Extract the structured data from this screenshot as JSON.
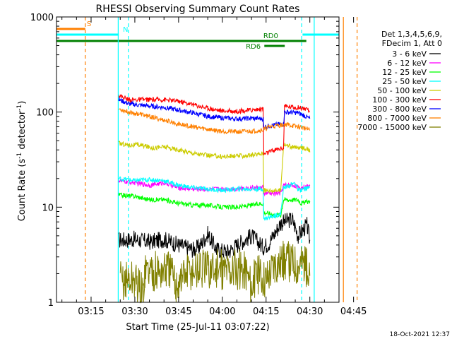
{
  "chart_data": {
    "type": "line",
    "title": "RHESSI Observing Summary Count Rates",
    "xlabel": "Start Time (25-Jul-11 03:07:22)",
    "ylabel_main": "Count Rate (s",
    "ylabel_sup1": "-1",
    "ylabel_mid": " detector",
    "ylabel_sup2": "-1",
    "ylabel_end": ")",
    "y_scale": "log",
    "ylim": [
      1,
      1000
    ],
    "xlim_minutes": [
      3.14,
      100
    ],
    "y_ticks": [
      {
        "value": 1,
        "label": "1"
      },
      {
        "value": 10,
        "label": "10"
      },
      {
        "value": 100,
        "label": "100"
      },
      {
        "value": 1000,
        "label": "1000"
      }
    ],
    "x_ticks": [
      {
        "minute": 15,
        "label": "03:15"
      },
      {
        "minute": 30,
        "label": "03:30"
      },
      {
        "minute": 45,
        "label": "03:45"
      },
      {
        "minute": 60,
        "label": "04:00"
      },
      {
        "minute": 75,
        "label": "04:15"
      },
      {
        "minute": 90,
        "label": "04:30"
      },
      {
        "minute": 105,
        "label": "04:45"
      }
    ],
    "legend_header": [
      "Det 1,3,4,5,6,9,",
      "FDecim 1, Att 0"
    ],
    "legend_placement": "right",
    "series": [
      {
        "name": "3 - 6 keV",
        "color": "#000000",
        "points": [
          [
            24.5,
            4.5
          ],
          [
            30,
            4.6
          ],
          [
            35,
            4.3
          ],
          [
            40,
            4.6
          ],
          [
            45,
            4.0
          ],
          [
            50,
            3.6
          ],
          [
            52,
            3.8
          ],
          [
            55,
            5.2
          ],
          [
            58,
            3.6
          ],
          [
            62,
            3.4
          ],
          [
            66,
            4.2
          ],
          [
            70,
            5.0
          ],
          [
            74,
            3.8
          ],
          [
            76,
            4.2
          ],
          [
            80,
            6.8
          ],
          [
            84,
            7.5
          ],
          [
            86,
            5.0
          ],
          [
            89,
            6.5
          ],
          [
            90,
            4.5
          ]
        ]
      },
      {
        "name": "6 - 12 keV",
        "color": "#ff00ff",
        "points": [
          [
            24.5,
            19
          ],
          [
            30,
            18
          ],
          [
            35,
            17
          ],
          [
            40,
            18
          ],
          [
            45,
            16
          ],
          [
            50,
            15.5
          ],
          [
            55,
            15.5
          ],
          [
            60,
            15.5
          ],
          [
            65,
            15.5
          ],
          [
            70,
            16
          ],
          [
            74,
            16
          ],
          [
            74.2,
            14
          ],
          [
            80,
            14
          ],
          [
            81,
            17
          ],
          [
            85,
            17
          ],
          [
            86,
            16
          ],
          [
            90,
            16.5
          ]
        ]
      },
      {
        "name": "12 - 25 keV",
        "color": "#00ff00",
        "points": [
          [
            24.5,
            13.5
          ],
          [
            30,
            13
          ],
          [
            35,
            12
          ],
          [
            40,
            12
          ],
          [
            45,
            11
          ],
          [
            50,
            10.5
          ],
          [
            55,
            10.5
          ],
          [
            60,
            10
          ],
          [
            65,
            10
          ],
          [
            70,
            10.5
          ],
          [
            74,
            11
          ],
          [
            74.2,
            8.8
          ],
          [
            80,
            8.2
          ],
          [
            81,
            12
          ],
          [
            86,
            12
          ],
          [
            87,
            11
          ],
          [
            90,
            11.5
          ]
        ]
      },
      {
        "name": "25 - 50 keV",
        "color": "#00ffff",
        "points": [
          [
            24.5,
            20
          ],
          [
            30,
            19
          ],
          [
            35,
            19.5
          ],
          [
            40,
            19
          ],
          [
            45,
            17
          ],
          [
            50,
            16
          ],
          [
            55,
            15.5
          ],
          [
            60,
            15
          ],
          [
            65,
            15.5
          ],
          [
            70,
            15.5
          ],
          [
            74,
            15.5
          ],
          [
            74.2,
            7.5
          ],
          [
            80,
            8.5
          ],
          [
            81,
            16
          ],
          [
            85,
            18
          ],
          [
            86,
            15
          ],
          [
            90,
            16
          ]
        ]
      },
      {
        "name": "50 - 100 keV",
        "color": "#cccc00",
        "points": [
          [
            24.5,
            47
          ],
          [
            28,
            45
          ],
          [
            32,
            45
          ],
          [
            36,
            42
          ],
          [
            40,
            43
          ],
          [
            45,
            40
          ],
          [
            50,
            37
          ],
          [
            55,
            35
          ],
          [
            60,
            34
          ],
          [
            65,
            34.5
          ],
          [
            70,
            35
          ],
          [
            74,
            37
          ],
          [
            74.2,
            15
          ],
          [
            80,
            15
          ],
          [
            81,
            46
          ],
          [
            85,
            42
          ],
          [
            88,
            42
          ],
          [
            90,
            40
          ]
        ]
      },
      {
        "name": "100 - 300 keV",
        "color": "#ff0000",
        "points": [
          [
            24.5,
            150
          ],
          [
            28,
            135
          ],
          [
            35,
            135
          ],
          [
            40,
            135
          ],
          [
            45,
            130
          ],
          [
            50,
            120
          ],
          [
            55,
            110
          ],
          [
            60,
            103
          ],
          [
            65,
            102
          ],
          [
            70,
            105
          ],
          [
            74,
            108
          ],
          [
            74.2,
            36
          ],
          [
            78,
            40
          ],
          [
            81,
            42
          ],
          [
            81.3,
            115
          ],
          [
            86,
            112
          ],
          [
            88,
            110
          ],
          [
            90,
            100
          ]
        ]
      },
      {
        "name": "300 - 800 keV",
        "color": "#0000ff",
        "points": [
          [
            24.5,
            135
          ],
          [
            28,
            122
          ],
          [
            32,
            118
          ],
          [
            36,
            115
          ],
          [
            40,
            112
          ],
          [
            45,
            105
          ],
          [
            50,
            98
          ],
          [
            55,
            90
          ],
          [
            60,
            87
          ],
          [
            65,
            85
          ],
          [
            70,
            86
          ],
          [
            74,
            85
          ],
          [
            74.2,
            70
          ],
          [
            80,
            75
          ],
          [
            81,
            75
          ],
          [
            81.3,
            100
          ],
          [
            86,
            98
          ],
          [
            88,
            92
          ],
          [
            90,
            85
          ]
        ]
      },
      {
        "name": "800 - 7000 keV",
        "color": "#ff8000",
        "points": [
          [
            24.5,
            108
          ],
          [
            28,
            100
          ],
          [
            32,
            95
          ],
          [
            36,
            88
          ],
          [
            40,
            82
          ],
          [
            45,
            75
          ],
          [
            50,
            70
          ],
          [
            55,
            66
          ],
          [
            60,
            63
          ],
          [
            65,
            62
          ],
          [
            70,
            63
          ],
          [
            74,
            65
          ],
          [
            76,
            70
          ],
          [
            80,
            73
          ],
          [
            82,
            74
          ],
          [
            84,
            72
          ],
          [
            86,
            70
          ],
          [
            88,
            68
          ],
          [
            90,
            65
          ]
        ]
      },
      {
        "name": "7000 - 15000 keV",
        "color": "#808000",
        "points": [
          [
            25,
            1.7
          ],
          [
            30,
            1.7
          ],
          [
            33,
            1.2
          ],
          [
            33.3,
            2.2
          ],
          [
            38,
            2.1
          ],
          [
            42,
            2.2
          ],
          [
            44,
            1.5
          ],
          [
            46,
            1.8
          ],
          [
            48,
            2.1
          ],
          [
            52,
            2.2
          ],
          [
            56,
            2.2
          ],
          [
            60,
            2.2
          ],
          [
            64,
            2.2
          ],
          [
            68,
            2.2
          ],
          [
            70,
            1.5
          ],
          [
            72,
            2.0
          ],
          [
            75,
            1.8
          ],
          [
            78,
            2.6
          ],
          [
            81,
            2.7
          ],
          [
            84,
            2.7
          ],
          [
            86,
            2.5
          ],
          [
            88,
            2.7
          ],
          [
            90,
            1.8
          ]
        ]
      }
    ],
    "bars": [
      {
        "label": "S",
        "color": "#ff8000",
        "level": "top",
        "x_start": 3.14,
        "x_end": 13,
        "x_start2": 101,
        "x_end2": 104,
        "label_minute": 14.3
      },
      {
        "label": "N",
        "color": "#00ffff",
        "level": "upper",
        "x_start": 3.14,
        "x_end": 24.5,
        "x_start2": 87.5,
        "x_end2": 107,
        "label_minute": 26.8
      },
      {
        "label": "RD0",
        "color": "#008000",
        "level": "middle",
        "x_start": 3.14,
        "x_end": 88.8,
        "label_minute": 76.6
      },
      {
        "label": "RD6",
        "color": "#008000",
        "level": "lower",
        "x_start": 74.4,
        "x_end": 81.4,
        "label_minute": 70.6
      }
    ],
    "vlines": [
      {
        "minute": 13,
        "color": "#ff8000",
        "dashed": true
      },
      {
        "minute": 24.3,
        "color": "#00ffff",
        "dashed": false
      },
      {
        "minute": 27.8,
        "color": "#00ffff",
        "dashed": true
      },
      {
        "minute": 87.2,
        "color": "#00ffff",
        "dashed": true
      },
      {
        "minute": 91.5,
        "color": "#00ffff",
        "dashed": false
      },
      {
        "minute": 101.5,
        "color": "#ff8000",
        "dashed": false
      },
      {
        "minute": 106.2,
        "color": "#ff8000",
        "dashed": true
      }
    ],
    "grid": false
  },
  "footer": {
    "timestamp": "18-Oct-2021 12:37"
  }
}
